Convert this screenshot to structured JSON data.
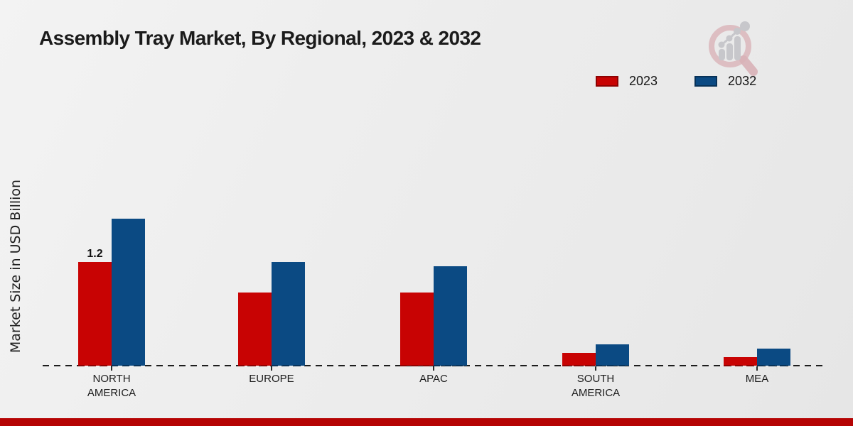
{
  "title": "Assembly Tray Market, By Regional, 2023 & 2032",
  "y_axis_label": "Market Size in USD Billion",
  "legend": {
    "items": [
      {
        "label": "2023",
        "color": "#c80303",
        "border": "#8e0202"
      },
      {
        "label": "2032",
        "color": "#0b4a83",
        "border": "#083258"
      }
    ]
  },
  "chart_data": {
    "type": "bar",
    "categories": [
      "NORTH AMERICA",
      "EUROPE",
      "APAC",
      "SOUTH AMERICA",
      "MEA"
    ],
    "series": [
      {
        "name": "2023",
        "color": "#c80303",
        "edge": "#8e0202",
        "values": [
          1.2,
          0.85,
          0.85,
          0.15,
          0.1
        ]
      },
      {
        "name": "2032",
        "color": "#0b4a83",
        "edge": "#083258",
        "values": [
          1.7,
          1.2,
          1.15,
          0.25,
          0.2
        ]
      }
    ],
    "annotations": [
      {
        "series": "2023",
        "category": "NORTH AMERICA",
        "text": "1.2"
      }
    ],
    "title": "Assembly Tray Market, By Regional, 2023 & 2032",
    "xlabel": "",
    "ylabel": "Market Size in USD Billion",
    "ylim": [
      0,
      2.2
    ],
    "grid": false,
    "baseline_style": "dashed",
    "legend_position": "upper-right"
  },
  "branding": {
    "logo_name": "magnifier-growth-chart-logo",
    "logo_circle_color": "#dcb9be",
    "logo_bars_color": "#c7c7cb",
    "accent_bar_color": "#b50404"
  }
}
